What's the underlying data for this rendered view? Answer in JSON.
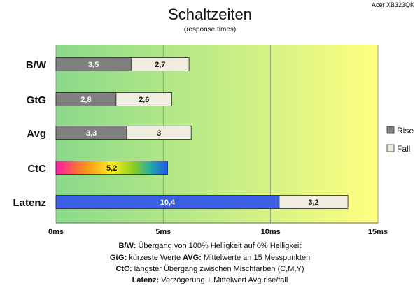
{
  "chart_data": {
    "type": "bar",
    "orientation": "horizontal",
    "stacked": true,
    "title": "Schaltzeiten",
    "subtitle": "(response times)",
    "model_label": "Acer XB323QK",
    "categories": [
      "B/W",
      "GtG",
      "Avg",
      "CtC",
      "Latenz"
    ],
    "series": [
      {
        "name": "Rise",
        "values": [
          3.5,
          2.8,
          3.3,
          5.2,
          10.4
        ],
        "labels": [
          "3,5",
          "2,8",
          "3,3",
          "5,2",
          "10,4"
        ],
        "color": "#7f7f7f"
      },
      {
        "name": "Fall",
        "values": [
          2.7,
          2.6,
          3.0,
          null,
          3.2
        ],
        "labels": [
          "2,7",
          "2,6",
          "3",
          "",
          "3,2"
        ],
        "color": "#f0ece0"
      }
    ],
    "special_colors": {
      "CtC": "rainbow-gradient",
      "Latenz": "#3a5fe0"
    },
    "xlim": [
      0,
      15
    ],
    "xticks": [
      0,
      5,
      10,
      15
    ],
    "xtick_labels": [
      "0ms",
      "5ms",
      "10ms",
      "15ms"
    ],
    "background_gradient": [
      "#8fdd8f",
      "#ffff80"
    ],
    "grid": true,
    "legend_position": "right"
  },
  "notes": [
    {
      "key": "B/W",
      "text": "Übergang von 100% Helligkeit auf 0% Helligkeit"
    },
    {
      "key": "GtG",
      "text": "kürzeste  Werte",
      "key2": "AVG",
      "text2": "Mittelwerte  an 15 Messpunkten"
    },
    {
      "key": "CtC",
      "text": "längster Übergang  zwischen Mischfarben (C,M,Y)"
    },
    {
      "key": "Latenz",
      "text": "Verzögerung  + Mittelwert Avg rise/fall"
    }
  ]
}
